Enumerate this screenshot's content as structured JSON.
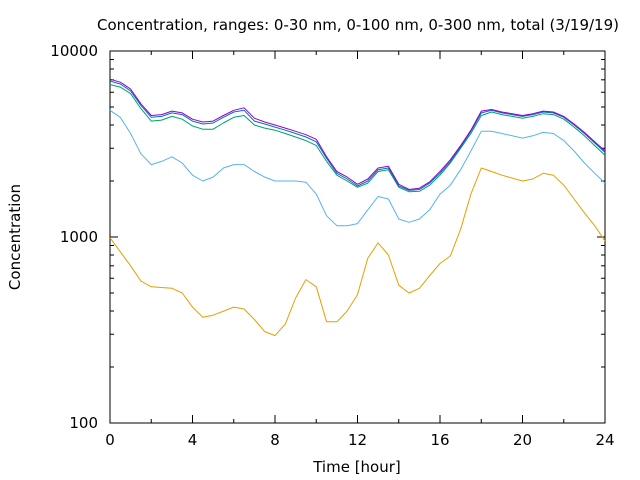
{
  "chart_data": {
    "type": "line",
    "title": "Concentration, ranges: 0-30 nm, 0-100 nm, 0-300 nm, total (3/19/19)",
    "xlabel": "Time [hour]",
    "ylabel": "Concentration",
    "xlim": [
      0,
      24
    ],
    "ylim": [
      100,
      10000
    ],
    "yscale": "log",
    "xticks": [
      "0",
      "4",
      "8",
      "12",
      "16",
      "20",
      "24"
    ],
    "yticks": [
      "100",
      "1000",
      "10000"
    ],
    "grid": false,
    "legend": "none",
    "series": [
      {
        "color": "#e69f00",
        "x": [
          0,
          1,
          1.5,
          2,
          3,
          3.5,
          4,
          4.5,
          5,
          6,
          6.5,
          7,
          7.5,
          8,
          8.5,
          9,
          9.5,
          10,
          10.5,
          11,
          11.5,
          12,
          12.5,
          13,
          13.5,
          14,
          14.5,
          15,
          15.5,
          16,
          16.5,
          17,
          17.5,
          18,
          18.5,
          19,
          20,
          20.5,
          21,
          21.5,
          22,
          22.5,
          23,
          23.5,
          24
        ],
        "y": [
          990,
          700,
          580,
          540,
          530,
          500,
          420,
          370,
          380,
          420,
          410,
          360,
          310,
          295,
          340,
          470,
          590,
          540,
          350,
          350,
          400,
          490,
          770,
          930,
          800,
          550,
          500,
          530,
          620,
          720,
          790,
          1100,
          1700,
          2350,
          2250,
          2150,
          2000,
          2050,
          2200,
          2150,
          1900,
          1600,
          1350,
          1150,
          950
        ]
      },
      {
        "color": "#56b4e9",
        "x": [
          0,
          0.5,
          1,
          1.5,
          2,
          2.5,
          3,
          3.5,
          4,
          4.5,
          5,
          5.5,
          6,
          6.5,
          7,
          7.5,
          8,
          8.5,
          9,
          9.5,
          10,
          10.5,
          11,
          11.5,
          12,
          12.5,
          13,
          13.5,
          14,
          14.5,
          15,
          15.5,
          16,
          16.5,
          17,
          17.5,
          18,
          18.5,
          19,
          19.5,
          20,
          20.5,
          21,
          21.5,
          22,
          22.5,
          23,
          23.5,
          24
        ],
        "y": [
          4800,
          4400,
          3600,
          2800,
          2450,
          2550,
          2700,
          2500,
          2150,
          2000,
          2100,
          2350,
          2450,
          2450,
          2250,
          2100,
          2000,
          2000,
          2000,
          1970,
          1700,
          1300,
          1150,
          1150,
          1180,
          1400,
          1650,
          1600,
          1250,
          1200,
          1250,
          1400,
          1700,
          1900,
          2300,
          2900,
          3700,
          3700,
          3600,
          3500,
          3400,
          3500,
          3650,
          3600,
          3300,
          2900,
          2500,
          2200,
          1950
        ]
      },
      {
        "color": "#009e73",
        "x": [
          0,
          0.5,
          1,
          1.5,
          2,
          2.5,
          3,
          3.5,
          4,
          4.5,
          5,
          5.5,
          6,
          6.5,
          7,
          7.5,
          8,
          8.5,
          9,
          9.5,
          10,
          10.5,
          11,
          11.5,
          12,
          12.5,
          13,
          13.5,
          14,
          14.5,
          15,
          15.5,
          16,
          16.5,
          17,
          17.5,
          18,
          18.5,
          19,
          19.5,
          20,
          20.5,
          21,
          21.5,
          22,
          22.5,
          23,
          23.5,
          24
        ],
        "y": [
          6600,
          6400,
          5900,
          4900,
          4200,
          4250,
          4450,
          4300,
          3950,
          3800,
          3800,
          4100,
          4400,
          4500,
          4000,
          3850,
          3750,
          3600,
          3450,
          3300,
          3100,
          2550,
          2150,
          2000,
          1850,
          1950,
          2250,
          2300,
          1850,
          1750,
          1760,
          1900,
          2150,
          2500,
          3000,
          3600,
          4500,
          4700,
          4550,
          4450,
          4350,
          4450,
          4600,
          4550,
          4300,
          3900,
          3500,
          3100,
          2750
        ]
      },
      {
        "color": "#0072b2",
        "x": [
          0,
          0.5,
          1,
          1.5,
          2,
          2.5,
          3,
          3.5,
          4,
          4.5,
          5,
          5.5,
          6,
          6.5,
          7,
          7.5,
          8,
          8.5,
          9,
          9.5,
          10,
          10.5,
          11,
          11.5,
          12,
          12.5,
          13,
          13.5,
          14,
          14.5,
          15,
          15.5,
          16,
          16.5,
          17,
          17.5,
          18,
          18.5,
          19,
          19.5,
          20,
          20.5,
          21,
          21.5,
          22,
          22.5,
          23,
          23.5,
          24
        ],
        "y": [
          6900,
          6650,
          6100,
          5100,
          4400,
          4450,
          4650,
          4550,
          4200,
          4050,
          4100,
          4400,
          4700,
          4800,
          4200,
          4050,
          3900,
          3750,
          3600,
          3450,
          3250,
          2650,
          2200,
          2050,
          1880,
          2000,
          2300,
          2350,
          1880,
          1780,
          1800,
          1950,
          2200,
          2550,
          3050,
          3700,
          4650,
          4800,
          4650,
          4550,
          4450,
          4550,
          4700,
          4650,
          4400,
          4000,
          3600,
          3200,
          2850
        ]
      },
      {
        "color": "#9400d3",
        "x": [
          0,
          0.5,
          1,
          1.5,
          2,
          2.5,
          3,
          3.5,
          4,
          4.5,
          5,
          5.5,
          6,
          6.5,
          7,
          7.5,
          8,
          8.5,
          9,
          9.5,
          10,
          10.5,
          11,
          11.5,
          12,
          12.5,
          13,
          13.5,
          14,
          14.5,
          15,
          15.5,
          16,
          16.5,
          17,
          17.5,
          18,
          18.5,
          19,
          19.5,
          20,
          20.5,
          21,
          21.5,
          22,
          22.5,
          23,
          23.5,
          24
        ],
        "y": [
          7050,
          6800,
          6250,
          5200,
          4500,
          4550,
          4750,
          4650,
          4300,
          4150,
          4200,
          4500,
          4800,
          4950,
          4350,
          4150,
          4000,
          3850,
          3700,
          3550,
          3350,
          2700,
          2250,
          2100,
          1920,
          2050,
          2350,
          2400,
          1920,
          1800,
          1830,
          1980,
          2250,
          2600,
          3100,
          3750,
          4750,
          4850,
          4700,
          4600,
          4500,
          4600,
          4750,
          4700,
          4450,
          4050,
          3650,
          3250,
          2900
        ]
      }
    ]
  }
}
